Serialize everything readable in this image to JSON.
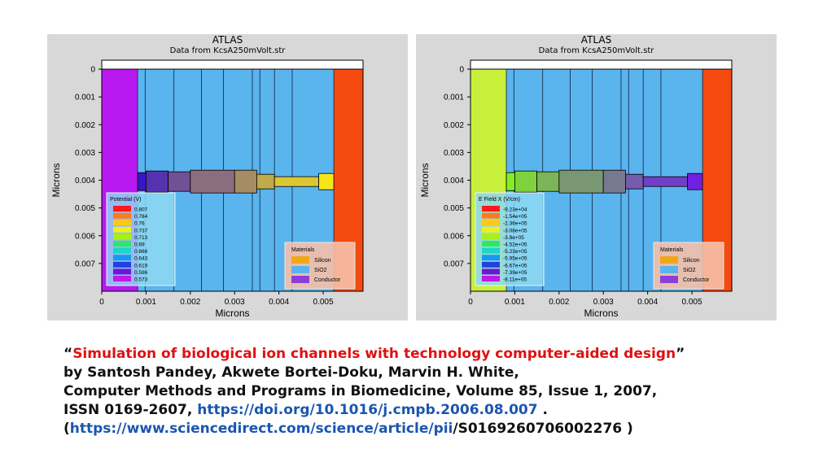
{
  "panels": [
    {
      "id": "left",
      "title": "ATLAS",
      "subtitle": "Data from KcsA250mVolt.str",
      "legend_title": "Potential (V)",
      "legend_values": [
        "0.807",
        "0.784",
        "0.76",
        "0.737",
        "0.713",
        "0.69",
        "0.666",
        "0.643",
        "0.619",
        "0.596",
        "0.573"
      ],
      "colors": {
        "left_region": "#b818f0",
        "pore_start": "#3a14c8",
        "pore_end": "#f6e618",
        "right_region": "#f54a10"
      }
    },
    {
      "id": "right",
      "title": "ATLAS",
      "subtitle": "Data from KcsA250mVolt.str",
      "legend_title": "E Field X (V/cm)",
      "legend_values": [
        "-9.23e+04",
        "-1.54e+05",
        "-2.36e+05",
        "-3.08e+05",
        "-3.8e+05",
        "-4.52e+05",
        "-5.23e+05",
        "-5.95e+05",
        "-6.67e+05",
        "-7.39e+05",
        "-8.11e+05"
      ],
      "colors": {
        "left_region": "#c8f03a",
        "pore_start": "#80f020",
        "pore_end": "#7020e0",
        "right_region": "#f54a10"
      }
    }
  ],
  "materials": {
    "title": "Materials",
    "items": [
      {
        "label": "Silicon",
        "color": "#f0a818"
      },
      {
        "label": "SiO2",
        "color": "#5ab4ee"
      },
      {
        "label": "Conductor",
        "color": "#8a40d8"
      }
    ]
  },
  "chart_data": [
    {
      "type": "heatmap",
      "title": "ATLAS",
      "subtitle": "Data from KcsA250mVolt.str",
      "xlabel": "Microns",
      "ylabel": "Microns",
      "xticks": [
        "0",
        "0.001",
        "0.002",
        "0.003",
        "0.004",
        "0.005"
      ],
      "yticks": [
        "0",
        "0.001",
        "0.002",
        "0.003",
        "0.004",
        "0.005",
        "0.006",
        "0.007"
      ],
      "xlim": [
        0,
        0.0059
      ],
      "ylim": [
        0,
        0.008
      ],
      "legend_title": "Potential (V)",
      "legend_values": [
        0.807,
        0.784,
        0.76,
        0.737,
        0.713,
        0.69,
        0.666,
        0.643,
        0.619,
        0.596,
        0.573
      ]
    },
    {
      "type": "heatmap",
      "title": "ATLAS",
      "subtitle": "Data from KcsA250mVolt.str",
      "xlabel": "Microns",
      "ylabel": "Microns",
      "xticks": [
        "0",
        "0.001",
        "0.002",
        "0.003",
        "0.004",
        "0.005"
      ],
      "yticks": [
        "0",
        "0.001",
        "0.002",
        "0.003",
        "0.004",
        "0.005",
        "0.006",
        "0.007"
      ],
      "xlim": [
        0,
        0.0059
      ],
      "ylim": [
        0,
        0.008
      ],
      "legend_title": "E Field X (V/cm)",
      "legend_values": [
        -92300,
        -154000,
        -236000,
        -308000,
        -380000,
        -452000,
        -523000,
        -595000,
        -667000,
        -739000,
        -811000
      ]
    }
  ],
  "caption": {
    "open_quote": "“",
    "title": "Simulation of biological ion channels with technology computer-aided design",
    "close_quote": "”",
    "line2": "by Santosh Pandey, Akwete Bortei-Doku, Marvin H. White,",
    "line3": "Computer Methods and Programs in Biomedicine, Volume 85, Issue 1, 2007,",
    "line4_prefix": "ISSN 0169-2607, ",
    "doi": "https://doi.org/10.1016/j.cmpb.2006.08.007",
    "line4_suffix": " .",
    "line5_open": "(",
    "url_blue": "https://www.sciencedirect.com/science/article/pii",
    "url_black": "/S0169260706002276 )"
  }
}
